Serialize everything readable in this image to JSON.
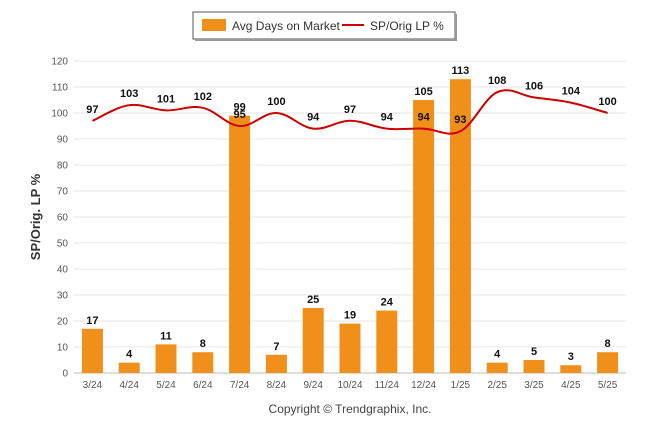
{
  "chart_data": {
    "type": "bar",
    "categories": [
      "3/24",
      "4/24",
      "5/24",
      "6/24",
      "7/24",
      "8/24",
      "9/24",
      "10/24",
      "11/24",
      "12/24",
      "1/25",
      "2/25",
      "3/25",
      "4/25",
      "5/25"
    ],
    "series": [
      {
        "name": "Avg Days on Market",
        "type": "bar",
        "color": "#f0901a",
        "values": [
          17,
          4,
          11,
          8,
          99,
          7,
          25,
          19,
          24,
          105,
          113,
          4,
          5,
          3,
          8
        ]
      },
      {
        "name": "SP/Orig LP %",
        "type": "line",
        "color": "#cc0000",
        "values": [
          97,
          103,
          101,
          102,
          95,
          100,
          94,
          97,
          94,
          94,
          93,
          108,
          106,
          104,
          100
        ]
      }
    ],
    "ylabel": "SP/Orig. LP %",
    "ylim": [
      0,
      120
    ],
    "yticks": [
      0,
      10,
      20,
      30,
      40,
      50,
      60,
      70,
      80,
      90,
      100,
      110,
      120
    ],
    "grid": true,
    "legend_position": "top-center"
  },
  "footer": "Copyright © Trendgraphix, Inc."
}
